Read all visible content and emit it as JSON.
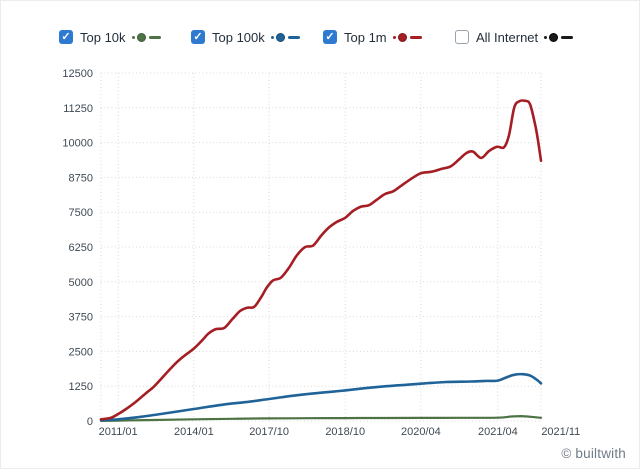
{
  "legend": {
    "items": [
      {
        "label": "Top 10k",
        "checked": true,
        "color": "#4d7345",
        "ring": "#3c5a36"
      },
      {
        "label": "Top 100k",
        "checked": true,
        "color": "#1f6398",
        "ring": "#174a72"
      },
      {
        "label": "Top 1m",
        "checked": true,
        "color": "#a41e24",
        "ring": "#7c161b"
      },
      {
        "label": "All Internet",
        "checked": false,
        "color": "#1a1a1a",
        "ring": "#000000"
      }
    ]
  },
  "colors": {
    "grid": "#d9d9d9",
    "axis_text": "#3f4a55",
    "checkbox": "#2e7ad1",
    "copyright": "#6f7b87"
  },
  "chart_data": {
    "type": "line",
    "title": "",
    "xlabel": "",
    "ylabel": "",
    "ylim": [
      0,
      12500
    ],
    "y_ticks": [
      0,
      1250,
      2500,
      3750,
      5000,
      6250,
      7500,
      8750,
      10000,
      11250,
      12500
    ],
    "x_ticks": [
      {
        "label": "2011/01",
        "pos": 0.039
      },
      {
        "label": "2014/01",
        "pos": 0.211
      },
      {
        "label": "2017/10",
        "pos": 0.382
      },
      {
        "label": "2018/10",
        "pos": 0.555
      },
      {
        "label": "2020/04",
        "pos": 0.727
      },
      {
        "label": "2021/04",
        "pos": 0.902
      },
      {
        "label": "2021/11",
        "pos": 1.045
      }
    ],
    "grid": "dotted",
    "legend_position": "top",
    "series": [
      {
        "name": "Top 10k",
        "color": "#4d7345",
        "points": [
          [
            0.0,
            5
          ],
          [
            0.039,
            15
          ],
          [
            0.12,
            35
          ],
          [
            0.211,
            60
          ],
          [
            0.3,
            80
          ],
          [
            0.382,
            95
          ],
          [
            0.47,
            100
          ],
          [
            0.555,
            105
          ],
          [
            0.64,
            108
          ],
          [
            0.727,
            110
          ],
          [
            0.82,
            115
          ],
          [
            0.902,
            120
          ],
          [
            0.932,
            160
          ],
          [
            0.955,
            175
          ],
          [
            0.977,
            150
          ],
          [
            1.0,
            115
          ]
        ]
      },
      {
        "name": "Top 100k",
        "color": "#1f6398",
        "points": [
          [
            0.0,
            30
          ],
          [
            0.039,
            60
          ],
          [
            0.091,
            150
          ],
          [
            0.136,
            250
          ],
          [
            0.211,
            430
          ],
          [
            0.273,
            580
          ],
          [
            0.33,
            680
          ],
          [
            0.382,
            790
          ],
          [
            0.432,
            900
          ],
          [
            0.477,
            980
          ],
          [
            0.523,
            1050
          ],
          [
            0.555,
            1100
          ],
          [
            0.602,
            1180
          ],
          [
            0.648,
            1250
          ],
          [
            0.693,
            1300
          ],
          [
            0.727,
            1340
          ],
          [
            0.784,
            1400
          ],
          [
            0.841,
            1420
          ],
          [
            0.875,
            1440
          ],
          [
            0.902,
            1450
          ],
          [
            0.92,
            1560
          ],
          [
            0.939,
            1660
          ],
          [
            0.959,
            1680
          ],
          [
            0.977,
            1620
          ],
          [
            0.993,
            1450
          ],
          [
            1.0,
            1350
          ]
        ]
      },
      {
        "name": "Top 1m",
        "color": "#a41e24",
        "points": [
          [
            0.0,
            60
          ],
          [
            0.023,
            120
          ],
          [
            0.039,
            250
          ],
          [
            0.057,
            430
          ],
          [
            0.08,
            700
          ],
          [
            0.102,
            1000
          ],
          [
            0.118,
            1200
          ],
          [
            0.136,
            1500
          ],
          [
            0.159,
            1900
          ],
          [
            0.182,
            2250
          ],
          [
            0.211,
            2600
          ],
          [
            0.23,
            2900
          ],
          [
            0.245,
            3150
          ],
          [
            0.261,
            3300
          ],
          [
            0.28,
            3340
          ],
          [
            0.298,
            3650
          ],
          [
            0.316,
            3950
          ],
          [
            0.332,
            4070
          ],
          [
            0.348,
            4100
          ],
          [
            0.364,
            4450
          ],
          [
            0.377,
            4800
          ],
          [
            0.391,
            5050
          ],
          [
            0.409,
            5150
          ],
          [
            0.427,
            5500
          ],
          [
            0.445,
            5950
          ],
          [
            0.464,
            6250
          ],
          [
            0.482,
            6300
          ],
          [
            0.5,
            6650
          ],
          [
            0.518,
            6950
          ],
          [
            0.536,
            7150
          ],
          [
            0.555,
            7300
          ],
          [
            0.573,
            7550
          ],
          [
            0.591,
            7700
          ],
          [
            0.609,
            7750
          ],
          [
            0.627,
            7950
          ],
          [
            0.645,
            8150
          ],
          [
            0.664,
            8250
          ],
          [
            0.682,
            8450
          ],
          [
            0.705,
            8700
          ],
          [
            0.727,
            8900
          ],
          [
            0.75,
            8950
          ],
          [
            0.773,
            9050
          ],
          [
            0.795,
            9150
          ],
          [
            0.814,
            9400
          ],
          [
            0.83,
            9620
          ],
          [
            0.845,
            9680
          ],
          [
            0.864,
            9450
          ],
          [
            0.882,
            9700
          ],
          [
            0.9,
            9850
          ],
          [
            0.916,
            9830
          ],
          [
            0.927,
            10250
          ],
          [
            0.939,
            11250
          ],
          [
            0.95,
            11480
          ],
          [
            0.964,
            11500
          ],
          [
            0.975,
            11380
          ],
          [
            0.986,
            10700
          ],
          [
            0.993,
            10100
          ],
          [
            1.0,
            9350
          ]
        ]
      }
    ]
  },
  "footer": {
    "copyright": "© builtwith"
  }
}
